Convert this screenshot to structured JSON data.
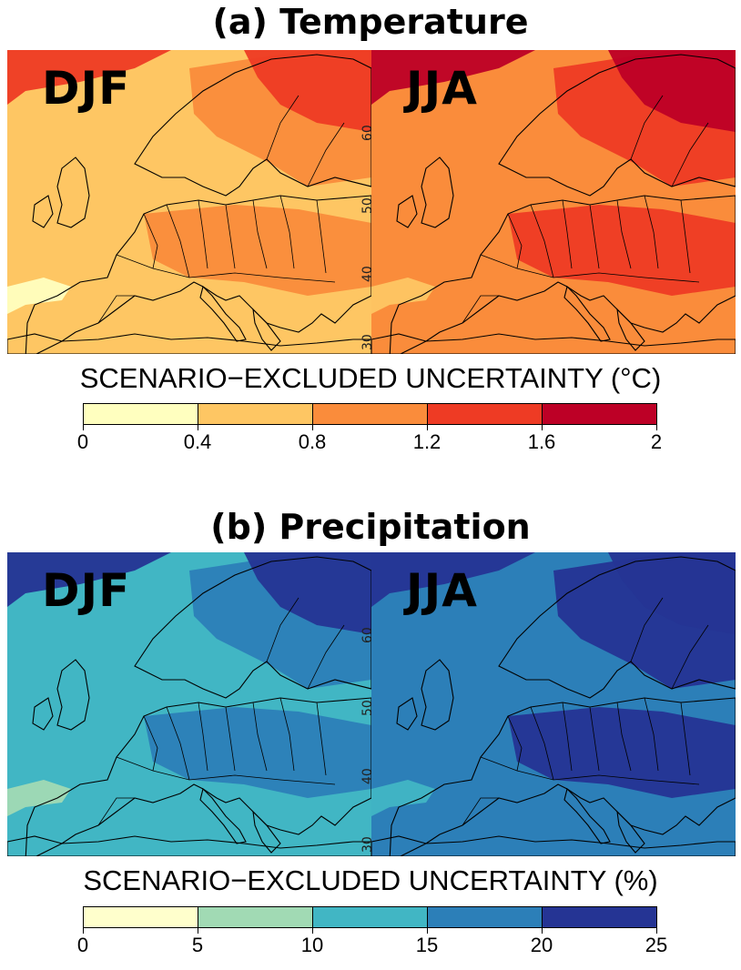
{
  "panels": [
    {
      "title": "(a) Temperature",
      "legend_title": "SCENARIO−EXCLUDED UNCERTAINTY (°C)",
      "ticks": [
        "0",
        "0.4",
        "0.8",
        "1.2",
        "1.6",
        "2"
      ],
      "palette": [
        "#ffffbf",
        "#fec663",
        "#fa8c3b",
        "#ee3b24",
        "#bd0026"
      ],
      "maps": [
        {
          "season": "DJF",
          "base_class": 1
        },
        {
          "season": "JJA",
          "base_class": 2
        }
      ]
    },
    {
      "title": "(b) Precipitation",
      "legend_title": "SCENARIO−EXCLUDED UNCERTAINTY (%)",
      "ticks": [
        "0",
        "5",
        "10",
        "15",
        "20",
        "25"
      ],
      "palette": [
        "#ffffcc",
        "#a1dab4",
        "#41b6c4",
        "#2c7fb8",
        "#253494"
      ],
      "maps": [
        {
          "season": "DJF",
          "base_class": 2
        },
        {
          "season": "JJA",
          "base_class": 3
        }
      ]
    }
  ],
  "latitude_labels": [
    "60",
    "50",
    "40",
    "30"
  ]
}
